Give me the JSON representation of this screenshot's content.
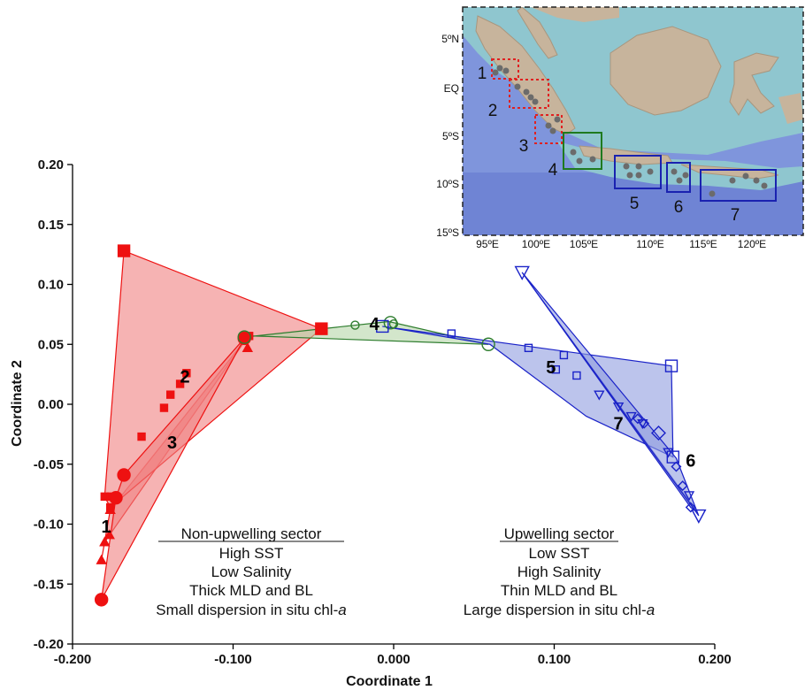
{
  "chart_data": {
    "type": "scatter",
    "xlabel": "Coordinate 1",
    "ylabel": "Coordinate 2",
    "xlim": [
      -0.2,
      0.2
    ],
    "ylim": [
      -0.2,
      0.2
    ],
    "x_ticks": [
      "-0.200",
      "-0.100",
      "0.000",
      "0.100",
      "0.200"
    ],
    "y_ticks": [
      "0.20",
      "0.15",
      "0.10",
      "0.05",
      "0.00",
      "-0.05",
      "-0.10",
      "-0.15",
      "-0.20"
    ],
    "grid": false,
    "groups": [
      {
        "label": "1",
        "color": "#ee1111",
        "fill": "#f08080",
        "marker": "triangle-filled",
        "hull": [
          [
            -0.182,
            -0.13
          ],
          [
            -0.1765,
            -0.088
          ],
          [
            -0.091,
            0.056
          ],
          [
            -0.18,
            -0.115
          ]
        ],
        "points": [
          [
            -0.182,
            -0.13
          ],
          [
            -0.18,
            -0.115
          ],
          [
            -0.177,
            -0.109
          ],
          [
            -0.1765,
            -0.088
          ],
          [
            -0.091,
            0.047
          ]
        ]
      },
      {
        "label": "2",
        "color": "#ee1111",
        "fill": "#f08080",
        "marker": "square-filled",
        "hull": [
          [
            -0.18,
            -0.077
          ],
          [
            -0.168,
            0.128
          ],
          [
            -0.045,
            0.063
          ],
          [
            -0.1765,
            -0.086
          ]
        ],
        "points": [
          [
            -0.168,
            0.128
          ],
          [
            -0.045,
            0.063
          ],
          [
            -0.18,
            -0.077
          ],
          [
            -0.176,
            -0.077
          ],
          [
            -0.1765,
            -0.086
          ],
          [
            -0.157,
            -0.027
          ],
          [
            -0.143,
            -0.003
          ],
          [
            -0.139,
            0.008
          ],
          [
            -0.133,
            0.017
          ],
          [
            -0.129,
            0.026
          ],
          [
            -0.09,
            0.057
          ]
        ]
      },
      {
        "label": "3",
        "color": "#ee1111",
        "fill": "#f08080",
        "marker": "circle-filled",
        "hull": [
          [
            -0.182,
            -0.163
          ],
          [
            -0.173,
            -0.078
          ],
          [
            -0.168,
            -0.059
          ],
          [
            -0.093,
            0.055
          ]
        ],
        "points": [
          [
            -0.182,
            -0.163
          ],
          [
            -0.173,
            -0.078
          ],
          [
            -0.168,
            -0.059
          ],
          [
            -0.093,
            0.055
          ]
        ]
      },
      {
        "label": "4",
        "color": "#2e7d2e",
        "fill": "#b5d5a8",
        "marker": "circle-open",
        "hull": [
          [
            -0.093,
            0.056
          ],
          [
            -0.003,
            0.069
          ],
          [
            0.059,
            0.05
          ],
          [
            -0.088,
            0.057
          ]
        ],
        "points": [
          [
            -0.093,
            0.056
          ],
          [
            -0.024,
            0.066
          ],
          [
            -0.002,
            0.068
          ],
          [
            0.0,
            0.067
          ],
          [
            0.059,
            0.05
          ]
        ]
      },
      {
        "label": "5",
        "color": "#1a22c8",
        "fill": "#8f9ce0",
        "marker": "square-open",
        "hull": [
          [
            -0.007,
            0.065
          ],
          [
            0.173,
            0.032
          ],
          [
            0.174,
            -0.044
          ],
          [
            0.12,
            -0.01
          ],
          [
            0.06,
            0.05
          ]
        ],
        "points": [
          [
            -0.007,
            0.065
          ],
          [
            0.036,
            0.059
          ],
          [
            0.084,
            0.047
          ],
          [
            0.101,
            0.029
          ],
          [
            0.106,
            0.041
          ],
          [
            0.114,
            0.024
          ],
          [
            0.173,
            0.032
          ],
          [
            0.174,
            -0.044
          ]
        ]
      },
      {
        "label": "6",
        "color": "#1a22c8",
        "fill": "#8f9ce0",
        "marker": "diamond-open",
        "hull": [
          [
            0.08,
            0.11
          ],
          [
            0.189,
            -0.09
          ],
          [
            0.185,
            -0.086
          ]
        ],
        "points": [
          [
            0.152,
            -0.012
          ],
          [
            0.156,
            -0.016
          ],
          [
            0.165,
            -0.024
          ],
          [
            0.176,
            -0.052
          ],
          [
            0.18,
            -0.068
          ],
          [
            0.185,
            -0.086
          ]
        ]
      },
      {
        "label": "7",
        "color": "#1a22c8",
        "fill": "#8f9ce0",
        "marker": "triangle-open-down",
        "hull": [
          [
            0.08,
            0.11
          ],
          [
            0.19,
            -0.093
          ],
          [
            0.176,
            -0.045
          ]
        ],
        "points": [
          [
            0.08,
            0.11
          ],
          [
            0.128,
            0.008
          ],
          [
            0.14,
            -0.002
          ],
          [
            0.148,
            -0.01
          ],
          [
            0.155,
            -0.016
          ],
          [
            0.171,
            -0.04
          ],
          [
            0.184,
            -0.076
          ],
          [
            0.19,
            -0.093
          ]
        ]
      }
    ],
    "group_label_positions": {
      "1": [
        -0.179,
        -0.107
      ],
      "2": [
        -0.13,
        0.018
      ],
      "3": [
        -0.138,
        -0.037
      ],
      "4": [
        -0.012,
        0.062
      ],
      "5": [
        0.098,
        0.026
      ],
      "6": [
        0.185,
        -0.052
      ],
      "7": [
        0.14,
        -0.021
      ]
    }
  },
  "annotations": {
    "non_upwelling": {
      "title": "Non-upwelling sector",
      "lines": [
        "High SST",
        "Low Salinity",
        "Thick MLD and BL",
        "Small dispersion in situ chl-"
      ],
      "italic_suffix": "a"
    },
    "upwelling": {
      "title": "Upwelling sector",
      "lines": [
        "Low SST",
        "High Salinity",
        "Thin MLD and BL",
        "Large dispersion in situ chl-"
      ],
      "italic_suffix": "a"
    }
  },
  "inset_map": {
    "lat_labels": [
      "5ºN",
      "EQ",
      "5ºS",
      "10ºS",
      "15ºS"
    ],
    "lon_labels": [
      "95ºE",
      "100ºE",
      "105ºE",
      "110ºE",
      "115ºE",
      "120ºE"
    ],
    "region_labels": [
      "1",
      "2",
      "3",
      "4",
      "5",
      "6",
      "7"
    ],
    "box_colors": {
      "dotted": "#e02020",
      "green": "#1f7a1f",
      "blue": "#1a22b0"
    }
  }
}
